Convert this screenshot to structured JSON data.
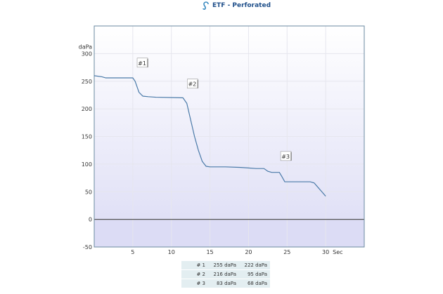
{
  "header": {
    "title": "ETF - Perforated",
    "icon": "ear-icon"
  },
  "chart_data": {
    "type": "line",
    "xlabel": "Sec",
    "ylabel": "daPa",
    "xlim": [
      0,
      35
    ],
    "ylim": [
      -50,
      350
    ],
    "xticks": [
      5,
      10,
      15,
      20,
      25,
      30
    ],
    "yticks": [
      -50,
      0,
      50,
      100,
      150,
      200,
      250,
      300
    ],
    "grid": true,
    "color": "#4a7aa8",
    "x": [
      0,
      1,
      1.5,
      5,
      5.3,
      5.8,
      6.3,
      7,
      8,
      11.5,
      12,
      12.5,
      13,
      13.5,
      14,
      14.5,
      15,
      17,
      19,
      20,
      21,
      22,
      22.5,
      23,
      24,
      24.3,
      24.7,
      28,
      28.5,
      29,
      29.5,
      30
    ],
    "y": [
      260,
      258,
      256,
      256,
      250,
      230,
      223,
      222,
      221,
      220,
      210,
      180,
      150,
      125,
      105,
      96,
      95,
      95,
      94,
      93,
      92,
      92,
      87,
      85,
      85,
      78,
      68,
      68,
      66,
      58,
      50,
      42
    ],
    "annotations": [
      {
        "text": "#1",
        "x": 6.2,
        "y": 283
      },
      {
        "text": "#2",
        "x": 12.7,
        "y": 245
      },
      {
        "text": "#3",
        "x": 24.8,
        "y": 114
      }
    ]
  },
  "table": {
    "rows": [
      [
        "# 1",
        "255 daPa",
        "222 daPa"
      ],
      [
        "# 2",
        "216 daPa",
        "95 daPa"
      ],
      [
        "# 3",
        "83 daPa",
        "68 daPa"
      ]
    ]
  }
}
